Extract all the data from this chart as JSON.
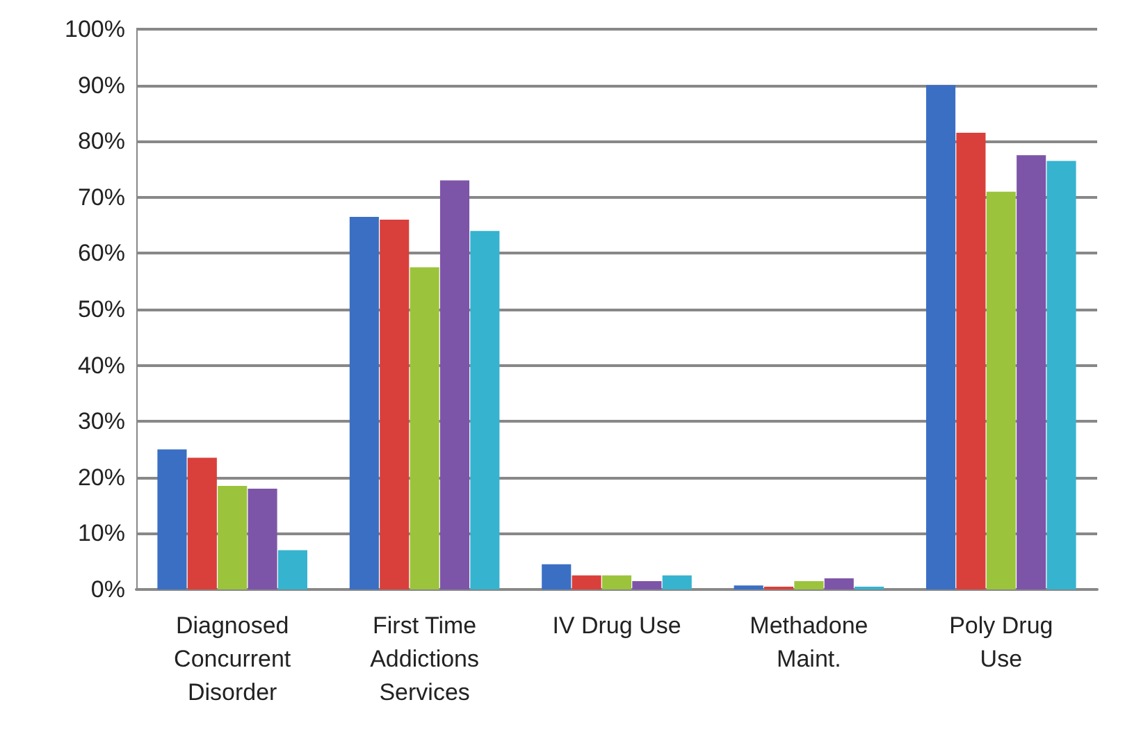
{
  "chart_data": {
    "type": "bar",
    "categories": [
      "Diagnosed\nConcurrent\nDisorder",
      "First Time\nAddictions\nServices",
      "IV Drug Use",
      "Methadone\nMaint.",
      "Poly Drug\nUse"
    ],
    "series": [
      {
        "color": "#3a6fc4",
        "values": [
          25,
          66.5,
          4.5,
          0.7,
          90
        ]
      },
      {
        "color": "#d9403b",
        "values": [
          23.5,
          66,
          2.5,
          0.5,
          81.5
        ]
      },
      {
        "color": "#9bc43c",
        "values": [
          18.5,
          57.5,
          2.5,
          1.5,
          71
        ]
      },
      {
        "color": "#7d55a8",
        "values": [
          18,
          73,
          1.5,
          2,
          77.5
        ]
      },
      {
        "color": "#36b3cf",
        "values": [
          7,
          64,
          2.5,
          0.5,
          76.5
        ]
      }
    ],
    "ylim": [
      0,
      100
    ],
    "yticks": [
      {
        "value": 0,
        "label": "0%"
      },
      {
        "value": 10,
        "label": "10%"
      },
      {
        "value": 20,
        "label": "20%"
      },
      {
        "value": 30,
        "label": "30%"
      },
      {
        "value": 40,
        "label": "40%"
      },
      {
        "value": 50,
        "label": "50%"
      },
      {
        "value": 60,
        "label": "60%"
      },
      {
        "value": 70,
        "label": "70%"
      },
      {
        "value": 80,
        "label": "80%"
      },
      {
        "value": 90,
        "label": "90%"
      },
      {
        "value": 100,
        "label": "100%"
      }
    ],
    "grid": "y"
  }
}
